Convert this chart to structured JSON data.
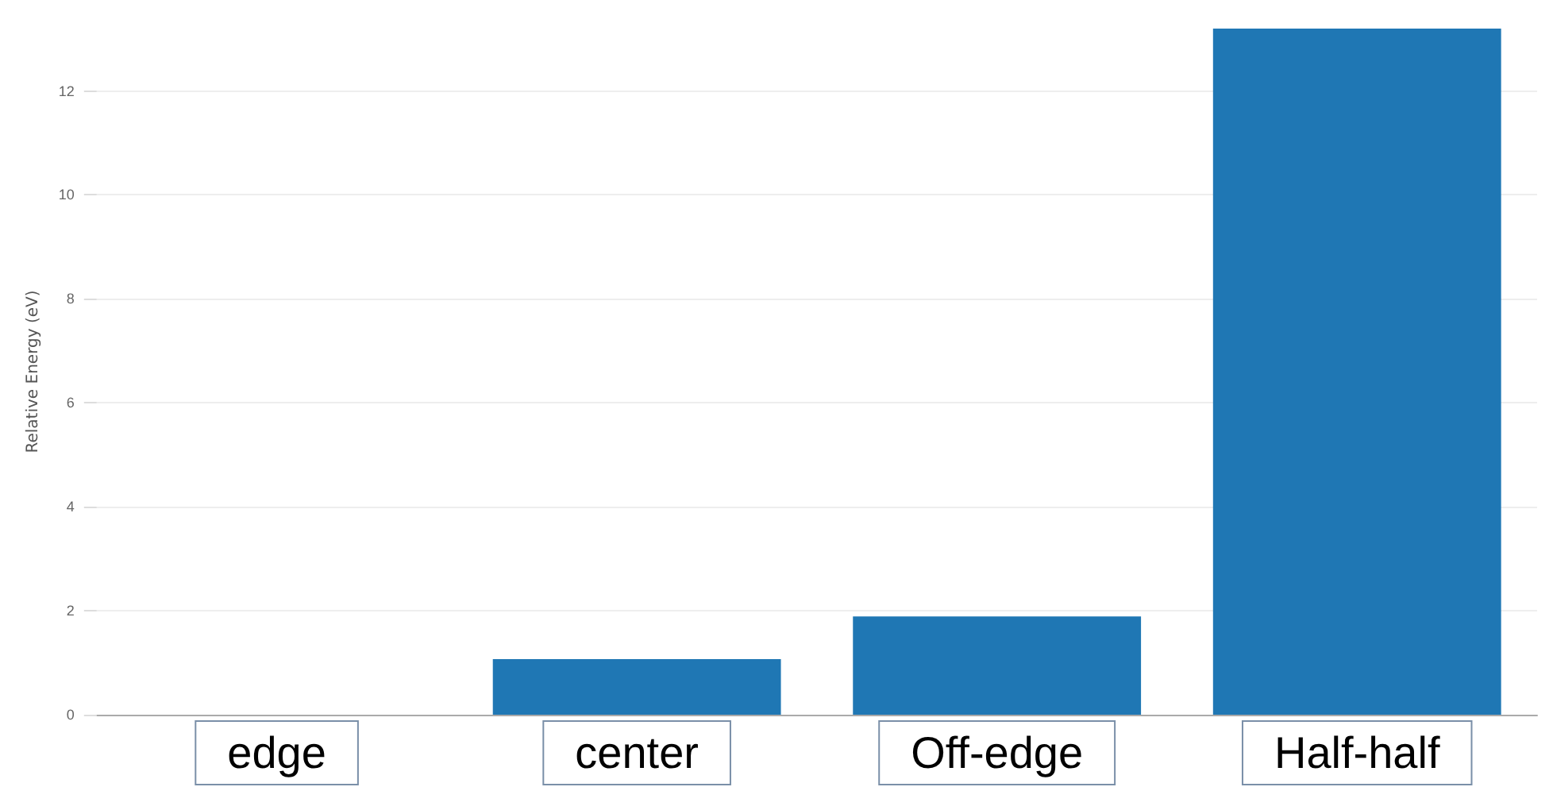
{
  "chart_data": {
    "type": "bar",
    "ylabel": "Relative Energy (eV)",
    "categories": [
      "edge",
      "center",
      "Off-edge",
      "Half-half"
    ],
    "values": [
      0,
      1.07,
      1.89,
      13.2
    ],
    "color": "#1f77b4",
    "ylim": [
      0,
      13.2
    ],
    "yticks": [
      0,
      2,
      4,
      6,
      8,
      10,
      12
    ],
    "grid": "y"
  }
}
